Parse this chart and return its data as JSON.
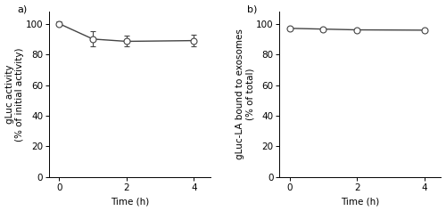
{
  "panel_a": {
    "x": [
      0,
      1,
      2,
      4
    ],
    "y": [
      100,
      90,
      88.5,
      89
    ],
    "yerr": [
      1.5,
      5.0,
      3.5,
      4.0
    ],
    "xlabel": "Time (h)",
    "ylabel": "gLuc activity\n(% of initial activity)",
    "xlim": [
      -0.3,
      4.5
    ],
    "ylim": [
      0,
      108
    ],
    "yticks": [
      0,
      20,
      40,
      60,
      80,
      100
    ],
    "xticks": [
      0,
      2,
      4
    ],
    "label": "a)"
  },
  "panel_b": {
    "x": [
      0,
      1,
      2,
      4
    ],
    "y": [
      97,
      96.5,
      96.0,
      95.8
    ],
    "yerr": [
      0,
      0,
      0,
      0
    ],
    "xlabel": "Time (h)",
    "ylabel": "gLuc-LA bound to exosomes\n(% of total)",
    "xlim": [
      -0.3,
      4.5
    ],
    "ylim": [
      0,
      108
    ],
    "yticks": [
      0,
      20,
      40,
      60,
      80,
      100
    ],
    "xticks": [
      0,
      2,
      4
    ],
    "label": "b)"
  },
  "line_color": "#444444",
  "marker": "o",
  "markersize": 5,
  "markerfacecolor": "#ffffff",
  "markeredgecolor": "#444444",
  "capsize": 2.5,
  "linewidth": 1.0,
  "font_size": 8.0,
  "label_fontsize": 7.5,
  "tick_fontsize": 7.5,
  "background_color": "#ffffff"
}
